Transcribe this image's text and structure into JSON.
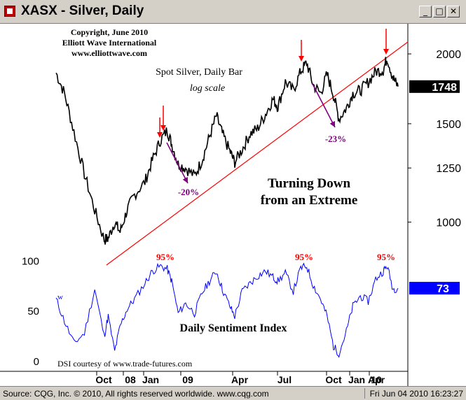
{
  "window": {
    "title": "XASX - Silver, Daily",
    "minimize_icon": "minimize-icon",
    "maximize_icon": "maximize-icon",
    "close_icon": "close-icon"
  },
  "annotations": {
    "copyright": [
      "Copyright, June 2010",
      "Elliott Wave International",
      "www.elliottwave.com"
    ],
    "price_title": "Spot Silver, Daily Bar",
    "price_subtitle": "log scale",
    "headline": [
      "Turning Down",
      "from an Extreme"
    ],
    "dsi_title": "Daily Sentiment Index",
    "dsi_credit": "DSI courtesy of www.trade-futures.com",
    "decline_labels": [
      "-20%",
      "-23%"
    ],
    "extreme_labels": [
      "95%",
      "95%",
      "95%"
    ],
    "dsi_w_marker": "w"
  },
  "status": {
    "left": "Source: CQG, Inc. © 2010, All rights reserved worldwide. www.cqg.com",
    "right": "Fri Jun 04 2010 16:23:27"
  },
  "colors": {
    "price_line": "#000000",
    "dsi_line": "#0000ff",
    "trendline": "#ff0000",
    "arrow_red": "#ff0000",
    "arrow_purple": "#800080",
    "last_price_bg": "#000000",
    "last_dsi_bg": "#0000ff"
  },
  "chart_data": [
    {
      "type": "line",
      "title": "Spot Silver, Daily Bar",
      "subtitle": "log scale",
      "scale": "log",
      "x_ticks": [
        "Oct",
        "08",
        "Jan",
        "09",
        "Apr",
        "Jul",
        "Oct",
        "Jan",
        "10",
        "Apr"
      ],
      "y_ticks": [
        1000,
        1250,
        1500,
        2000
      ],
      "ylim": [
        875,
        2200
      ],
      "last_value": 1748,
      "series": [
        {
          "x": [
            "2008-07-15",
            "2008-08-01",
            "2008-08-20",
            "2008-09-10",
            "2008-10-01",
            "2008-10-20",
            "2008-10-28",
            "2008-11-10",
            "2008-11-21",
            "2008-12-05",
            "2008-12-20",
            "2009-01-10",
            "2009-01-25",
            "2009-02-10",
            "2009-02-24",
            "2009-03-05",
            "2009-03-18",
            "2009-04-02",
            "2009-04-20",
            "2009-05-05",
            "2009-05-20",
            "2009-06-03",
            "2009-06-15",
            "2009-06-30",
            "2009-07-10",
            "2009-07-25",
            "2009-08-10",
            "2009-08-25",
            "2009-09-10",
            "2009-09-25",
            "2009-10-05",
            "2009-10-20",
            "2009-11-05",
            "2009-11-20",
            "2009-12-02",
            "2009-12-15",
            "2009-12-30",
            "2010-01-12",
            "2010-01-25",
            "2010-02-05",
            "2010-02-20",
            "2010-03-05",
            "2010-03-20",
            "2010-04-05",
            "2010-04-20",
            "2010-05-05",
            "2010-05-13",
            "2010-05-25",
            "2010-06-04"
          ],
          "values": [
            1850,
            1700,
            1450,
            1220,
            1050,
            930,
            935,
            1000,
            960,
            1050,
            1120,
            1180,
            1290,
            1400,
            1460,
            1380,
            1270,
            1250,
            1210,
            1290,
            1420,
            1550,
            1440,
            1340,
            1280,
            1350,
            1440,
            1470,
            1560,
            1660,
            1610,
            1780,
            1720,
            1860,
            1930,
            1760,
            1700,
            1840,
            1690,
            1530,
            1600,
            1700,
            1720,
            1780,
            1860,
            1870,
            1970,
            1810,
            1748
          ]
        }
      ]
    },
    {
      "type": "line",
      "title": "Daily Sentiment Index",
      "y_ticks": [
        0,
        50,
        100
      ],
      "ylim": [
        -5,
        110
      ],
      "last_value": 73,
      "series": [
        {
          "x": [
            "2008-07-15",
            "2008-08-01",
            "2008-08-20",
            "2008-09-10",
            "2008-10-01",
            "2008-10-20",
            "2008-10-28",
            "2008-11-10",
            "2008-11-21",
            "2008-12-05",
            "2008-12-20",
            "2009-01-10",
            "2009-01-25",
            "2009-02-10",
            "2009-02-24",
            "2009-03-05",
            "2009-03-18",
            "2009-04-02",
            "2009-04-20",
            "2009-05-05",
            "2009-05-20",
            "2009-06-03",
            "2009-06-15",
            "2009-06-30",
            "2009-07-10",
            "2009-07-25",
            "2009-08-10",
            "2009-08-25",
            "2009-09-10",
            "2009-09-25",
            "2009-10-05",
            "2009-10-20",
            "2009-11-05",
            "2009-11-20",
            "2009-12-02",
            "2009-12-15",
            "2009-12-30",
            "2010-01-12",
            "2010-01-25",
            "2010-02-05",
            "2010-02-20",
            "2010-03-05",
            "2010-03-20",
            "2010-04-05",
            "2010-04-20",
            "2010-05-05",
            "2010-05-13",
            "2010-05-25",
            "2010-06-04"
          ],
          "values": [
            62,
            40,
            18,
            28,
            72,
            25,
            45,
            10,
            35,
            52,
            62,
            78,
            90,
            95,
            92,
            80,
            48,
            58,
            48,
            68,
            80,
            90,
            72,
            55,
            45,
            70,
            78,
            85,
            90,
            84,
            80,
            88,
            70,
            93,
            95,
            76,
            62,
            45,
            15,
            8,
            30,
            55,
            65,
            60,
            82,
            90,
            95,
            72,
            73
          ]
        }
      ]
    }
  ]
}
